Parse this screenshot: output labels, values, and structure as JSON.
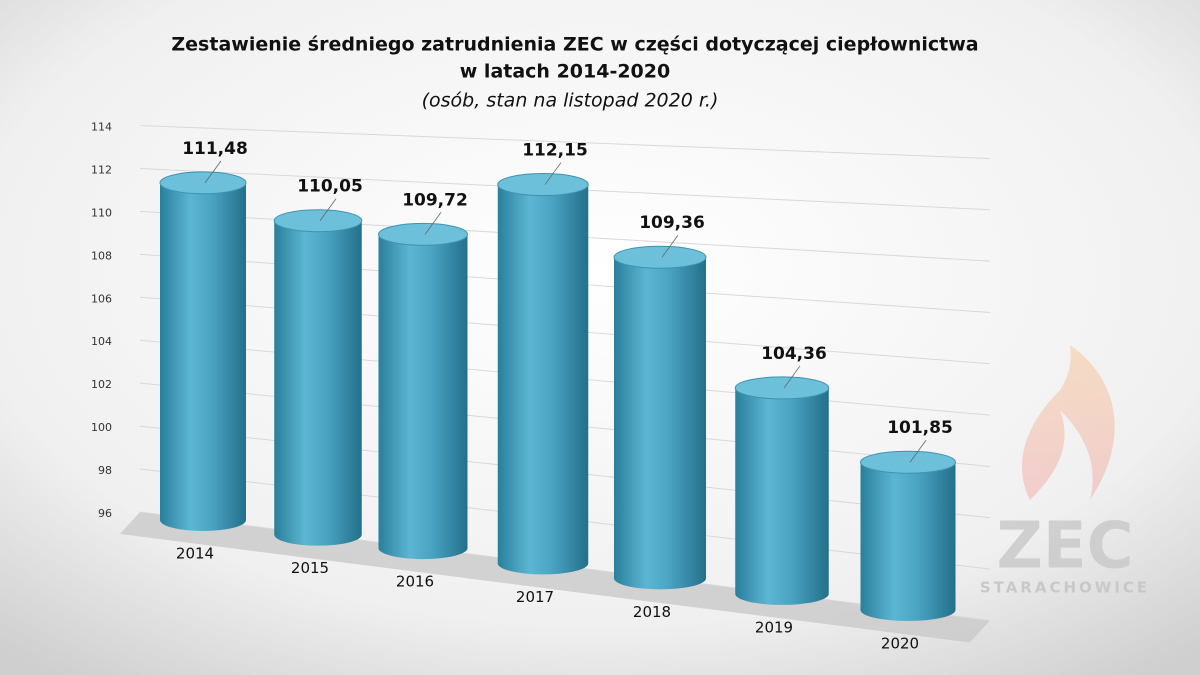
{
  "chart_data": {
    "type": "bar",
    "title": "Zestawienie średniego zatrudnienia ZEC w części dotyczącej ciepłownictwa",
    "title_line2": "w latach 2014-2020",
    "subtitle": "(osób, stan na listopad 2020 r.)",
    "categories": [
      "2014",
      "2015",
      "2016",
      "2017",
      "2018",
      "2019",
      "2020"
    ],
    "values": [
      111.48,
      110.05,
      109.72,
      112.15,
      109.36,
      104.36,
      101.85
    ],
    "value_labels": [
      "111,48",
      "110,05",
      "109,72",
      "112,15",
      "109,36",
      "104,36",
      "101,85"
    ],
    "color": "#4aa3c2",
    "ylim": [
      96,
      114
    ],
    "yticks": [
      96,
      98,
      100,
      102,
      104,
      106,
      108,
      110,
      112,
      114
    ],
    "grid": true
  },
  "logo": {
    "name": "ZEC",
    "city": "STARACHOWICE"
  }
}
